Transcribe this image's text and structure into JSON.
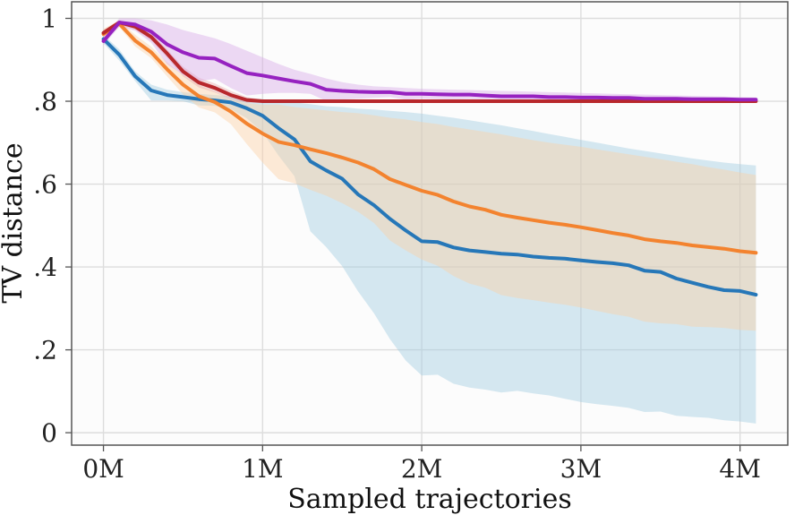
{
  "chart_data": {
    "type": "line",
    "title": "",
    "xlabel": "Sampled trajectories",
    "ylabel": "TV distance",
    "xlim": [
      -0.2,
      4.3
    ],
    "ylim": [
      -0.03,
      1.04
    ],
    "grid": true,
    "x_ticks": [
      {
        "value": 0,
        "label": "0M"
      },
      {
        "value": 1,
        "label": "1M"
      },
      {
        "value": 2,
        "label": "2M"
      },
      {
        "value": 3,
        "label": "3M"
      },
      {
        "value": 4,
        "label": "4M"
      }
    ],
    "y_ticks": [
      {
        "value": 0,
        "label": "0"
      },
      {
        "value": 0.2,
        "label": ".2"
      },
      {
        "value": 0.4,
        "label": ".4"
      },
      {
        "value": 0.6,
        "label": ".6"
      },
      {
        "value": 0.8,
        "label": ".8"
      },
      {
        "value": 1.0,
        "label": "1"
      }
    ],
    "x": [
      0,
      0.1,
      0.2,
      0.3,
      0.4,
      0.5,
      0.6,
      0.7,
      0.8,
      0.9,
      1.0,
      1.1,
      1.2,
      1.3,
      1.4,
      1.5,
      1.6,
      1.7,
      1.8,
      1.9,
      2.0,
      2.1,
      2.2,
      2.3,
      2.4,
      2.5,
      2.6,
      2.7,
      2.8,
      2.9,
      3.0,
      3.1,
      3.2,
      3.3,
      3.4,
      3.5,
      3.6,
      3.7,
      3.8,
      3.9,
      4.0,
      4.1
    ],
    "series": [
      {
        "name": "blue",
        "color": "#2677b8",
        "band_color": "#9ecae1",
        "values": [
          0.95,
          0.912,
          0.86,
          0.826,
          0.815,
          0.81,
          0.805,
          0.802,
          0.797,
          0.783,
          0.765,
          0.735,
          0.708,
          0.655,
          0.633,
          0.613,
          0.575,
          0.549,
          0.516,
          0.488,
          0.462,
          0.46,
          0.447,
          0.44,
          0.436,
          0.432,
          0.43,
          0.425,
          0.422,
          0.42,
          0.416,
          0.412,
          0.409,
          0.404,
          0.391,
          0.388,
          0.372,
          0.362,
          0.352,
          0.344,
          0.342,
          0.333
        ],
        "upper": [
          0.96,
          0.925,
          0.872,
          0.84,
          0.828,
          0.822,
          0.818,
          0.815,
          0.812,
          0.808,
          0.805,
          0.801,
          0.797,
          0.793,
          0.788,
          0.786,
          0.782,
          0.78,
          0.777,
          0.774,
          0.77,
          0.765,
          0.76,
          0.754,
          0.748,
          0.742,
          0.735,
          0.728,
          0.721,
          0.714,
          0.707,
          0.7,
          0.693,
          0.686,
          0.68,
          0.674,
          0.668,
          0.662,
          0.657,
          0.652,
          0.648,
          0.645
        ],
        "lower": [
          0.94,
          0.898,
          0.848,
          0.802,
          0.802,
          0.8,
          0.79,
          0.789,
          0.781,
          0.759,
          0.725,
          0.669,
          0.619,
          0.486,
          0.448,
          0.402,
          0.341,
          0.288,
          0.226,
          0.174,
          0.138,
          0.14,
          0.118,
          0.109,
          0.104,
          0.097,
          0.101,
          0.095,
          0.09,
          0.082,
          0.074,
          0.069,
          0.065,
          0.06,
          0.05,
          0.051,
          0.041,
          0.038,
          0.036,
          0.03,
          0.027,
          0.022
        ]
      },
      {
        "name": "orange",
        "color": "#f3832f",
        "band_color": "#fdd0a2",
        "values": [
          0.962,
          0.987,
          0.946,
          0.918,
          0.877,
          0.84,
          0.812,
          0.798,
          0.775,
          0.746,
          0.722,
          0.702,
          0.694,
          0.684,
          0.675,
          0.664,
          0.652,
          0.636,
          0.612,
          0.598,
          0.584,
          0.574,
          0.558,
          0.546,
          0.538,
          0.526,
          0.519,
          0.513,
          0.507,
          0.502,
          0.496,
          0.489,
          0.482,
          0.476,
          0.467,
          0.462,
          0.458,
          0.452,
          0.448,
          0.444,
          0.438,
          0.434
        ],
        "upper": [
          0.975,
          0.995,
          0.96,
          0.932,
          0.894,
          0.863,
          0.839,
          0.823,
          0.805,
          0.795,
          0.792,
          0.792,
          0.786,
          0.782,
          0.778,
          0.774,
          0.771,
          0.766,
          0.76,
          0.756,
          0.75,
          0.745,
          0.738,
          0.732,
          0.726,
          0.72,
          0.713,
          0.706,
          0.7,
          0.695,
          0.69,
          0.684,
          0.678,
          0.672,
          0.666,
          0.66,
          0.654,
          0.648,
          0.641,
          0.635,
          0.628,
          0.622
        ],
        "lower": [
          0.949,
          0.979,
          0.932,
          0.904,
          0.86,
          0.817,
          0.785,
          0.773,
          0.745,
          0.697,
          0.652,
          0.612,
          0.602,
          0.586,
          0.572,
          0.554,
          0.533,
          0.506,
          0.464,
          0.44,
          0.418,
          0.403,
          0.378,
          0.36,
          0.35,
          0.332,
          0.325,
          0.32,
          0.314,
          0.309,
          0.302,
          0.294,
          0.286,
          0.28,
          0.268,
          0.264,
          0.262,
          0.256,
          0.255,
          0.253,
          0.248,
          0.246
        ]
      },
      {
        "name": "red",
        "color": "#b8282c",
        "band_color": "#e6a9a9",
        "values": [
          0.965,
          0.99,
          0.98,
          0.955,
          0.915,
          0.872,
          0.845,
          0.832,
          0.815,
          0.803,
          0.8,
          0.8,
          0.8,
          0.8,
          0.8,
          0.8,
          0.8,
          0.8,
          0.8,
          0.8,
          0.8,
          0.8,
          0.8,
          0.8,
          0.8,
          0.8,
          0.8,
          0.8,
          0.8,
          0.8,
          0.8,
          0.8,
          0.8,
          0.8,
          0.8,
          0.8,
          0.8,
          0.8,
          0.8,
          0.8,
          0.8,
          0.8
        ],
        "upper": [
          0.972,
          0.995,
          0.988,
          0.964,
          0.925,
          0.884,
          0.857,
          0.843,
          0.825,
          0.81,
          0.804,
          0.803,
          0.803,
          0.803,
          0.803,
          0.803,
          0.803,
          0.803,
          0.803,
          0.803,
          0.803,
          0.803,
          0.803,
          0.803,
          0.803,
          0.803,
          0.803,
          0.803,
          0.803,
          0.803,
          0.803,
          0.803,
          0.803,
          0.803,
          0.803,
          0.803,
          0.803,
          0.803,
          0.803,
          0.803,
          0.803,
          0.803
        ],
        "lower": [
          0.958,
          0.985,
          0.972,
          0.946,
          0.905,
          0.86,
          0.833,
          0.821,
          0.805,
          0.796,
          0.796,
          0.797,
          0.797,
          0.797,
          0.797,
          0.797,
          0.797,
          0.797,
          0.797,
          0.797,
          0.797,
          0.797,
          0.797,
          0.797,
          0.797,
          0.797,
          0.797,
          0.797,
          0.797,
          0.797,
          0.797,
          0.797,
          0.797,
          0.797,
          0.797,
          0.797,
          0.797,
          0.797,
          0.797,
          0.797,
          0.797,
          0.797
        ]
      },
      {
        "name": "purple",
        "color": "#9622c0",
        "band_color": "#d6a8e6",
        "values": [
          0.945,
          0.99,
          0.985,
          0.968,
          0.937,
          0.918,
          0.905,
          0.903,
          0.885,
          0.868,
          0.862,
          0.855,
          0.848,
          0.842,
          0.828,
          0.825,
          0.823,
          0.822,
          0.822,
          0.818,
          0.818,
          0.817,
          0.816,
          0.816,
          0.814,
          0.812,
          0.812,
          0.812,
          0.81,
          0.81,
          0.809,
          0.809,
          0.808,
          0.808,
          0.806,
          0.806,
          0.806,
          0.805,
          0.805,
          0.805,
          0.804,
          0.804
        ],
        "upper": [
          0.955,
          1.0,
          1.0,
          0.995,
          0.985,
          0.972,
          0.962,
          0.952,
          0.938,
          0.922,
          0.906,
          0.89,
          0.876,
          0.866,
          0.855,
          0.846,
          0.84,
          0.836,
          0.834,
          0.832,
          0.83,
          0.829,
          0.828,
          0.827,
          0.826,
          0.825,
          0.824,
          0.823,
          0.822,
          0.821,
          0.82,
          0.819,
          0.818,
          0.817,
          0.816,
          0.815,
          0.814,
          0.813,
          0.812,
          0.811,
          0.81,
          0.809
        ],
        "lower": [
          0.935,
          0.98,
          0.97,
          0.941,
          0.889,
          0.864,
          0.848,
          0.854,
          0.832,
          0.814,
          0.818,
          0.82,
          0.82,
          0.818,
          0.801,
          0.804,
          0.806,
          0.808,
          0.81,
          0.804,
          0.806,
          0.805,
          0.804,
          0.805,
          0.802,
          0.799,
          0.8,
          0.801,
          0.798,
          0.799,
          0.798,
          0.799,
          0.798,
          0.799,
          0.796,
          0.797,
          0.798,
          0.797,
          0.798,
          0.799,
          0.798,
          0.799
        ]
      }
    ]
  }
}
